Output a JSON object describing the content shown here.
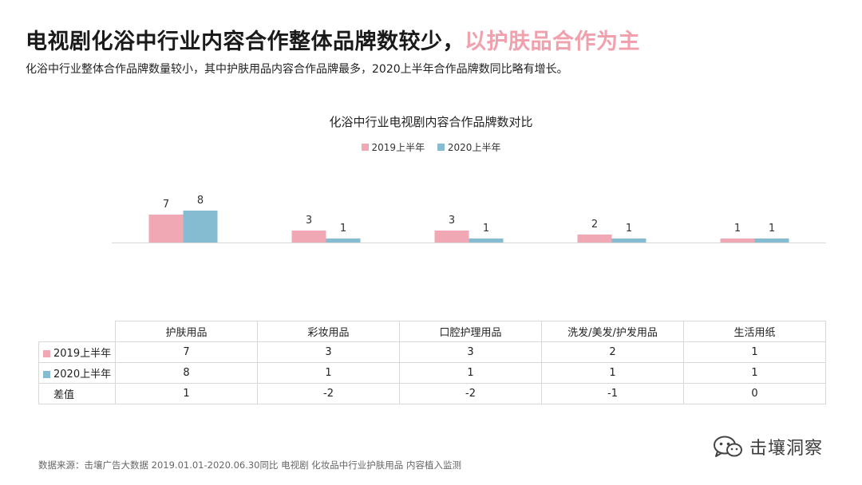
{
  "header": {
    "title_main": "电视剧化浴中行业内容合作整体品牌数较少，",
    "title_highlight": "以护肤品合作为主",
    "subtitle": "化浴中行业整体合作品牌数量较小，其中护肤用品内容合作品牌最多，2020上半年合作品牌数同比略有增长。"
  },
  "colors": {
    "accent": "#f0a1ad",
    "series_2019": "#f0a8b4",
    "series_2020": "#86bcd2",
    "axis": "#d9d9d9"
  },
  "chart_data": {
    "type": "bar",
    "title": "化浴中行业电视剧内容合作品牌数对比",
    "categories": [
      "护肤用品",
      "彩妆用品",
      "口腔护理用品",
      "洗发/美发/护发用品",
      "生活用纸"
    ],
    "series": [
      {
        "name": "2019上半年",
        "values": [
          7,
          3,
          3,
          2,
          1
        ]
      },
      {
        "name": "2020上半年",
        "values": [
          8,
          1,
          1,
          1,
          1
        ]
      }
    ],
    "ylim": [
      0,
      8
    ],
    "grid": false,
    "legend_position": "top-center",
    "data_labels": true
  },
  "table": {
    "rows": [
      {
        "label": "2019上半年",
        "values": [
          "7",
          "3",
          "3",
          "2",
          "1"
        ]
      },
      {
        "label": "2020上半年",
        "values": [
          "8",
          "1",
          "1",
          "1",
          "1"
        ]
      },
      {
        "label": "差值",
        "values": [
          "1",
          "-2",
          "-2",
          "-1",
          "0"
        ]
      }
    ]
  },
  "footer": {
    "source": "数据来源：击壤广告大数据 2019.01.01-2020.06.30同比 电视剧 化妆品中行业护肤用品 内容植入监测",
    "brand": "击壤洞察",
    "brand_icon": "wechat-icon"
  }
}
